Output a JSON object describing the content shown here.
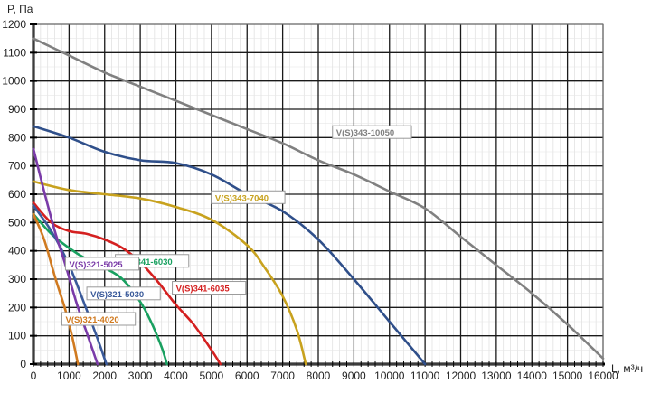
{
  "chart_data": {
    "type": "line",
    "title": "",
    "xlabel": "L, м³/ч",
    "ylabel": "P, Па",
    "xlim": [
      0,
      16000
    ],
    "ylim": [
      0,
      1200
    ],
    "x_ticks": [
      0,
      1000,
      2000,
      3000,
      4000,
      5000,
      6000,
      7000,
      8000,
      9000,
      10000,
      11000,
      12000,
      13000,
      14000,
      15000,
      16000
    ],
    "y_ticks": [
      0,
      100,
      200,
      300,
      400,
      500,
      600,
      700,
      800,
      900,
      1000,
      1100,
      1200
    ],
    "grid": {
      "major": true,
      "minor_x": true
    },
    "legend_position": "inline callout labels",
    "series": [
      {
        "name": "V(S)343-10050",
        "color": "#808080",
        "label_pos": [
          8400,
          810
        ],
        "x": [
          0,
          1000,
          2000,
          3000,
          4000,
          5000,
          6000,
          7000,
          8000,
          9000,
          10000,
          11000,
          12000,
          13000,
          14000,
          15000,
          16000
        ],
        "y": [
          1150,
          1090,
          1030,
          980,
          930,
          880,
          830,
          780,
          720,
          670,
          610,
          550,
          450,
          350,
          250,
          140,
          20
        ]
      },
      {
        "name": "",
        "color": "#2f4f8a",
        "label_pos": null,
        "x": [
          0,
          1000,
          2000,
          3000,
          4000,
          5000,
          6000,
          7000,
          8000,
          9000,
          10000,
          11000
        ],
        "y": [
          840,
          800,
          750,
          720,
          710,
          670,
          600,
          540,
          440,
          300,
          150,
          0
        ]
      },
      {
        "name": "V(S)343-7040",
        "color": "#c8a21e",
        "label_pos": [
          5000,
          580
        ],
        "x": [
          0,
          1000,
          2000,
          3000,
          4000,
          5000,
          6000,
          6500,
          7000,
          7400,
          7650
        ],
        "y": [
          645,
          615,
          600,
          585,
          555,
          510,
          420,
          340,
          240,
          120,
          0
        ]
      },
      {
        "name": "V(S)341-6035",
        "color": "#d42020",
        "label_pos": [
          3900,
          260
        ],
        "x": [
          0,
          500,
          1000,
          1500,
          2000,
          2500,
          3000,
          3500,
          4000,
          4500,
          5000,
          5250
        ],
        "y": [
          570,
          500,
          470,
          460,
          440,
          410,
          360,
          290,
          210,
          140,
          50,
          0
        ]
      },
      {
        "name": "V(S)341-6030",
        "color": "#19a060",
        "label_pos": [
          2300,
          355
        ],
        "x": [
          0,
          500,
          1000,
          1500,
          2000,
          2500,
          3000,
          3300,
          3600,
          3750
        ],
        "y": [
          530,
          460,
          410,
          370,
          340,
          300,
          220,
          150,
          60,
          0
        ]
      },
      {
        "name": "V(S)321-5030",
        "color": "#3a5a9a",
        "label_pos": [
          1500,
          240
        ],
        "x": [
          0,
          500,
          1000,
          1500,
          1800,
          2050
        ],
        "y": [
          560,
          470,
          350,
          190,
          90,
          0
        ]
      },
      {
        "name": "V(S)321-5025",
        "color": "#7a3ba8",
        "label_pos": [
          900,
          345
        ],
        "x": [
          0,
          300,
          600,
          900,
          1200,
          1500,
          1800
        ],
        "y": [
          760,
          610,
          470,
          350,
          220,
          110,
          0
        ]
      },
      {
        "name": "V(S)321-4020",
        "color": "#d07a20",
        "label_pos": [
          800,
          150
        ],
        "x": [
          0,
          300,
          600,
          900,
          1100,
          1250
        ],
        "y": [
          530,
          440,
          310,
          190,
          90,
          0
        ]
      }
    ]
  }
}
